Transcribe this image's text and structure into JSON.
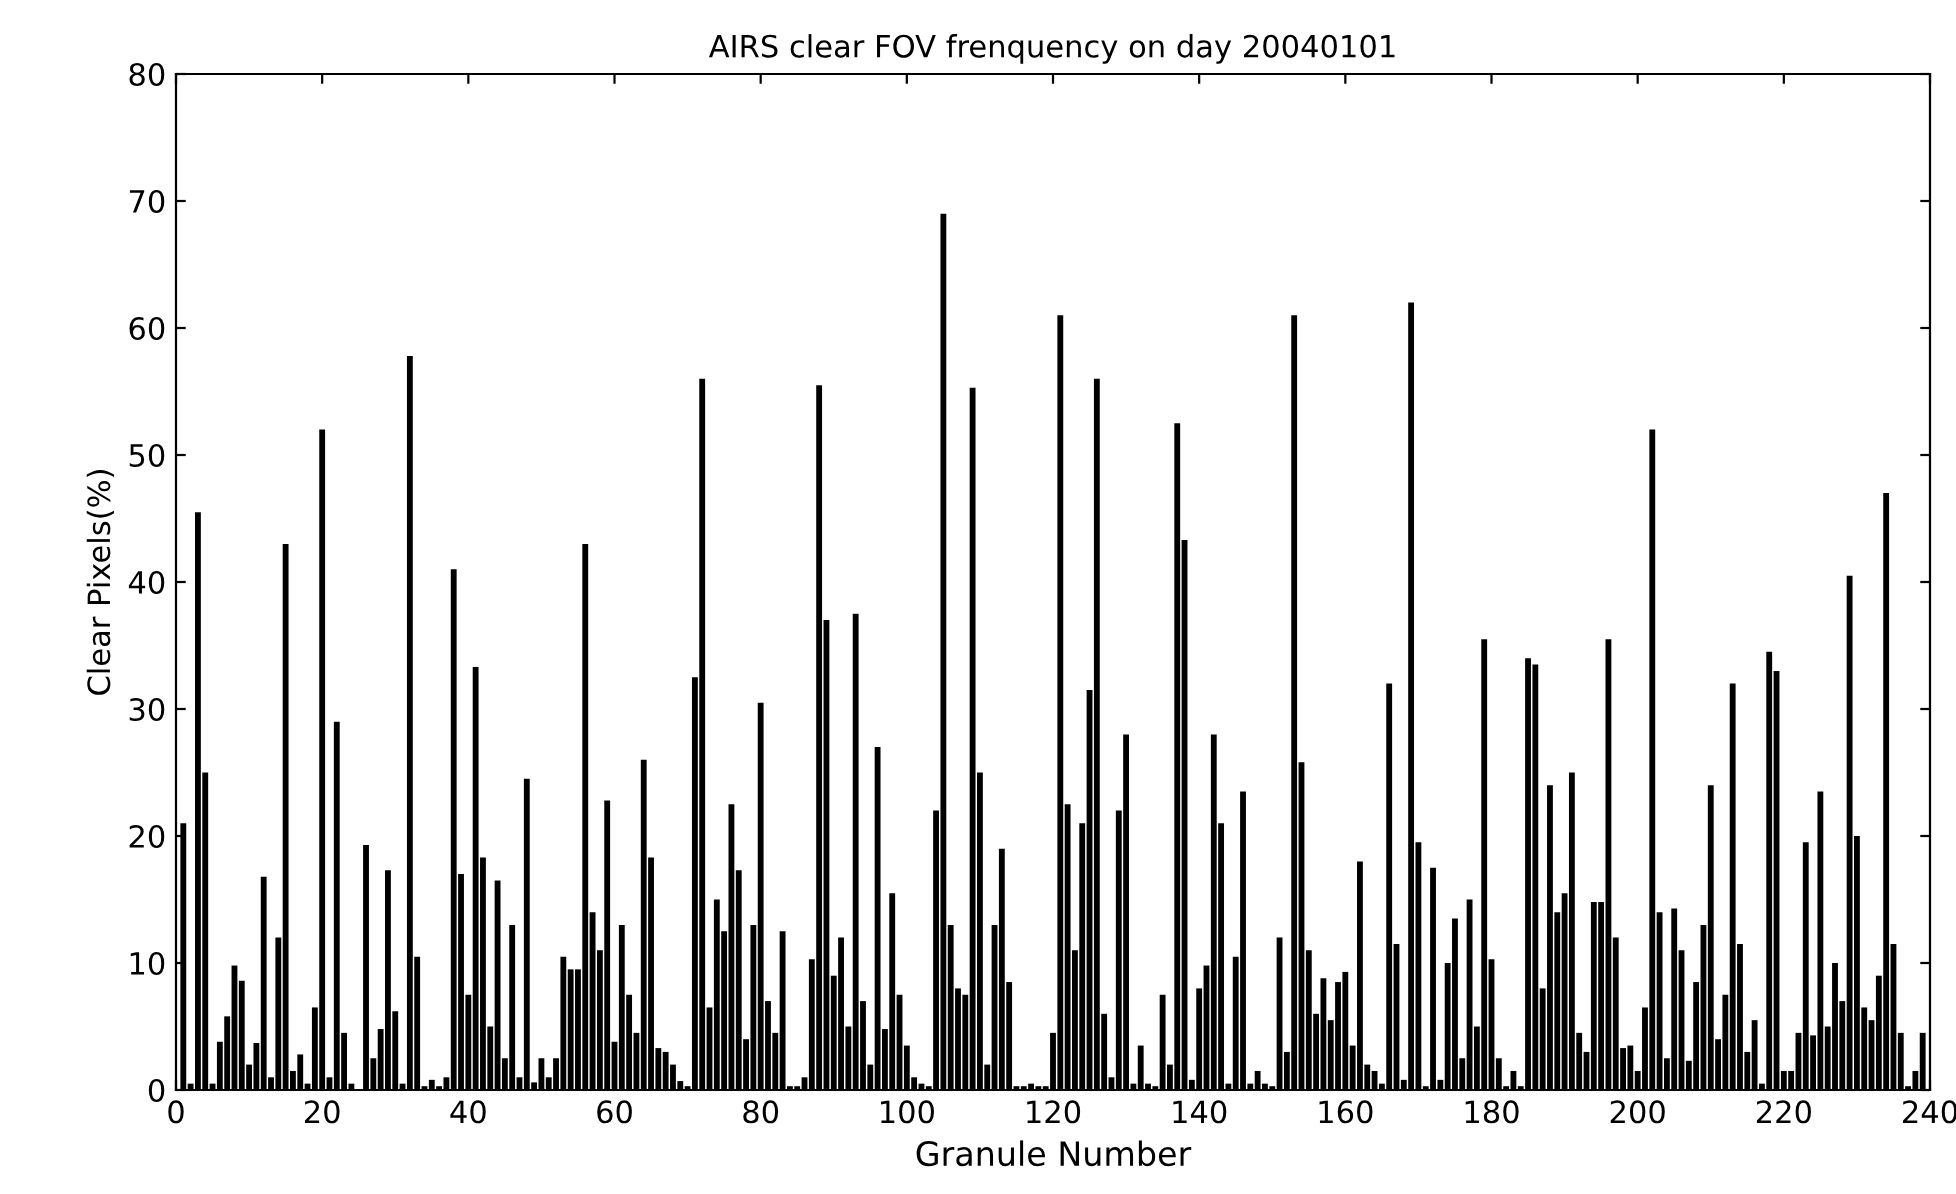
{
  "chart_data": {
    "type": "bar",
    "title": "AIRS clear FOV frenquency on day 20040101",
    "xlabel": "Granule Number",
    "ylabel": "Clear Pixels(%)",
    "x": [
      1,
      2,
      3,
      4,
      5,
      6,
      7,
      8,
      9,
      10,
      11,
      12,
      13,
      14,
      15,
      16,
      17,
      18,
      19,
      20,
      21,
      22,
      23,
      24,
      25,
      26,
      27,
      28,
      29,
      30,
      31,
      32,
      33,
      34,
      35,
      36,
      37,
      38,
      39,
      40,
      41,
      42,
      43,
      44,
      45,
      46,
      47,
      48,
      49,
      50,
      51,
      52,
      53,
      54,
      55,
      56,
      57,
      58,
      59,
      60,
      61,
      62,
      63,
      64,
      65,
      66,
      67,
      68,
      69,
      70,
      71,
      72,
      73,
      74,
      75,
      76,
      77,
      78,
      79,
      80,
      81,
      82,
      83,
      84,
      85,
      86,
      87,
      88,
      89,
      90,
      91,
      92,
      93,
      94,
      95,
      96,
      97,
      98,
      99,
      100,
      101,
      102,
      103,
      104,
      105,
      106,
      107,
      108,
      109,
      110,
      111,
      112,
      113,
      114,
      115,
      116,
      117,
      118,
      119,
      120,
      121,
      122,
      123,
      124,
      125,
      126,
      127,
      128,
      129,
      130,
      131,
      132,
      133,
      134,
      135,
      136,
      137,
      138,
      139,
      140,
      141,
      142,
      143,
      144,
      145,
      146,
      147,
      148,
      149,
      150,
      151,
      152,
      153,
      154,
      155,
      156,
      157,
      158,
      159,
      160,
      161,
      162,
      163,
      164,
      165,
      166,
      167,
      168,
      169,
      170,
      171,
      172,
      173,
      174,
      175,
      176,
      177,
      178,
      179,
      180,
      181,
      182,
      183,
      184,
      185,
      186,
      187,
      188,
      189,
      190,
      191,
      192,
      193,
      194,
      195,
      196,
      197,
      198,
      199,
      200,
      201,
      202,
      203,
      204,
      205,
      206,
      207,
      208,
      209,
      210,
      211,
      212,
      213,
      214,
      215,
      216,
      217,
      218,
      219,
      220,
      221,
      222,
      223,
      224,
      225,
      226,
      227,
      228,
      229,
      230,
      231,
      232,
      233,
      234,
      235,
      236,
      237,
      238,
      239
    ],
    "values": [
      21,
      0.5,
      45.5,
      25,
      0.5,
      3.8,
      5.8,
      9.8,
      8.6,
      2,
      3.7,
      16.8,
      1,
      12,
      43,
      1.5,
      2.8,
      0.5,
      6.5,
      52,
      1,
      29,
      4.5,
      0.5,
      null,
      19.3,
      2.5,
      4.8,
      17.3,
      6.2,
      0.5,
      57.8,
      10.5,
      0.3,
      0.8,
      0.3,
      1,
      41,
      17,
      7.5,
      33.3,
      18.3,
      5,
      16.5,
      2.5,
      13,
      1,
      24.5,
      0.6,
      2.5,
      1,
      2.5,
      10.5,
      9.5,
      9.5,
      43,
      14,
      11,
      22.8,
      3.8,
      13,
      7.5,
      4.5,
      26,
      18.3,
      3.3,
      3,
      2,
      0.7,
      0.3,
      32.5,
      56,
      6.5,
      15,
      12.5,
      22.5,
      17.3,
      4,
      13,
      30.5,
      7,
      4.5,
      12.5,
      0.3,
      0.3,
      1,
      10.3,
      55.5,
      37,
      9,
      12,
      5,
      37.5,
      7,
      2,
      27,
      4.8,
      15.5,
      7.5,
      3.5,
      1,
      0.5,
      0.3,
      22,
      69,
      13,
      8,
      7.5,
      55.3,
      25,
      2,
      13,
      19,
      8.5,
      0.3,
      0.3,
      0.5,
      0.3,
      0.3,
      4.5,
      61,
      22.5,
      11,
      21,
      31.5,
      56,
      6,
      1,
      22,
      28,
      0.5,
      3.5,
      0.5,
      0.3,
      7.5,
      2,
      52.5,
      43.3,
      0.8,
      8,
      9.8,
      28,
      21,
      0.5,
      10.5,
      23.5,
      0.5,
      1.5,
      0.5,
      0.3,
      12,
      3,
      61,
      25.8,
      11,
      6,
      8.8,
      5.5,
      8.5,
      9.3,
      3.5,
      18,
      2,
      1.5,
      0.5,
      32,
      11.5,
      0.8,
      62,
      19.5,
      0.3,
      17.5,
      0.8,
      10,
      13.5,
      2.5,
      15,
      5,
      35.5,
      10.3,
      2.5,
      0.3,
      1.5,
      0.3,
      34,
      33.5,
      8,
      24,
      14,
      15.5,
      25,
      4.5,
      3,
      14.8,
      14.8,
      35.5,
      12,
      3.3,
      3.5,
      1.5,
      6.5,
      52,
      14,
      2.5,
      14.3,
      11,
      2.3,
      8.5,
      13,
      24,
      4,
      7.5,
      32,
      11.5,
      3,
      5.5,
      0.5,
      34.5,
      33,
      1.5,
      1.5,
      4.5,
      19.5,
      4.3,
      23.5,
      5,
      10,
      7,
      40.5,
      20,
      6.5,
      5.5,
      9,
      47,
      11.5,
      4.5,
      0.3,
      1.5,
      4.5
    ],
    "color": "#000000",
    "xlim": [
      0,
      240
    ],
    "xticks": [
      0,
      20,
      40,
      60,
      80,
      100,
      120,
      140,
      160,
      180,
      200,
      220,
      240
    ],
    "ylim": [
      0,
      80
    ],
    "yticks": [
      0,
      10,
      20,
      30,
      40,
      50,
      60,
      70,
      80
    ],
    "grid": false,
    "legend": false
  }
}
